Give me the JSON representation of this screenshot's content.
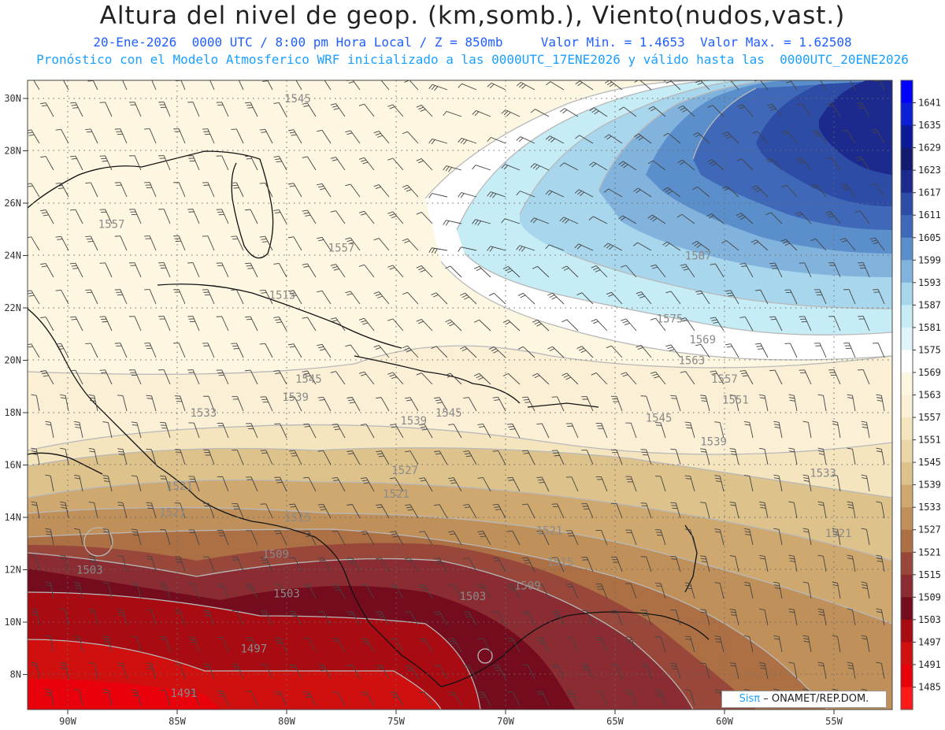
{
  "header": {
    "title": "Altura del nivel de geop. (km,somb.), Viento(nudos,vast.)",
    "date": "20-Ene-2026",
    "time": "0000 UTC / 8:00 pm Hora Local / Z = 850mb",
    "min_value": "Valor Min. = 1.4653",
    "max_value": "Valor Max. = 1.62508",
    "forecast_note": "Pronóstico con el Modelo Atmosferico WRF inicializado a las 0000UTC_17ENE2026 y válido hasta las  0000UTC_20ENE2026"
  },
  "map": {
    "lat_labels": [
      "30N",
      "28N",
      "26N",
      "24N",
      "22N",
      "20N",
      "18N",
      "16N",
      "14N",
      "12N",
      "10N",
      "8N"
    ],
    "lon_labels": [
      "90W",
      "85W",
      "80W",
      "75W",
      "70W",
      "65W",
      "60W",
      "55W"
    ],
    "contour_labels": [
      {
        "text": "1545",
        "lon": -79.5,
        "lat": 30.0
      },
      {
        "text": "1557",
        "lon": -88.0,
        "lat": 25.2
      },
      {
        "text": "1557",
        "lon": -77.5,
        "lat": 24.3
      },
      {
        "text": "1515",
        "lon": -80.2,
        "lat": 22.5
      },
      {
        "text": "1587",
        "lon": -61.2,
        "lat": 24.0
      },
      {
        "text": "1575",
        "lon": -62.5,
        "lat": 21.6
      },
      {
        "text": "1569",
        "lon": -61.0,
        "lat": 20.8
      },
      {
        "text": "1563",
        "lon": -61.5,
        "lat": 20.0
      },
      {
        "text": "1557",
        "lon": -60.0,
        "lat": 19.3
      },
      {
        "text": "1551",
        "lon": -59.5,
        "lat": 18.5
      },
      {
        "text": "1545",
        "lon": -79.0,
        "lat": 19.3
      },
      {
        "text": "1539",
        "lon": -79.6,
        "lat": 18.6
      },
      {
        "text": "1539",
        "lon": -74.2,
        "lat": 17.7
      },
      {
        "text": "1545",
        "lon": -72.6,
        "lat": 18.0
      },
      {
        "text": "1545",
        "lon": -63.0,
        "lat": 17.8
      },
      {
        "text": "1539",
        "lon": -60.5,
        "lat": 16.9
      },
      {
        "text": "1533",
        "lon": -83.8,
        "lat": 18.0
      },
      {
        "text": "1533",
        "lon": -55.5,
        "lat": 15.7
      },
      {
        "text": "1527",
        "lon": -74.6,
        "lat": 15.8
      },
      {
        "text": "1521",
        "lon": -84.9,
        "lat": 15.2
      },
      {
        "text": "1521",
        "lon": -85.2,
        "lat": 14.2
      },
      {
        "text": "1521",
        "lon": -75.0,
        "lat": 14.9
      },
      {
        "text": "1521",
        "lon": -68.0,
        "lat": 13.5
      },
      {
        "text": "1521",
        "lon": -54.8,
        "lat": 13.4
      },
      {
        "text": "1515",
        "lon": -79.5,
        "lat": 14.0
      },
      {
        "text": "1515",
        "lon": -67.5,
        "lat": 12.3
      },
      {
        "text": "1509",
        "lon": -80.5,
        "lat": 12.6
      },
      {
        "text": "1509",
        "lon": -69.0,
        "lat": 11.4
      },
      {
        "text": "1503",
        "lon": -89.0,
        "lat": 12.0
      },
      {
        "text": "1503",
        "lon": -80.0,
        "lat": 11.1
      },
      {
        "text": "1503",
        "lon": -71.5,
        "lat": 11.0
      },
      {
        "text": "1497",
        "lon": -81.5,
        "lat": 9.0
      },
      {
        "text": "1491",
        "lon": -84.7,
        "lat": 7.3
      }
    ]
  },
  "colorbar": {
    "levels": [
      "1641",
      "1635",
      "1629",
      "1623",
      "1617",
      "1611",
      "1605",
      "1599",
      "1593",
      "1587",
      "1581",
      "1575",
      "1569",
      "1563",
      "1557",
      "1551",
      "1545",
      "1539",
      "1533",
      "1527",
      "1521",
      "1515",
      "1509",
      "1503",
      "1497",
      "1491",
      "1485"
    ],
    "colors": [
      "#0000ff",
      "#0b1fd6",
      "#0c1a9a",
      "#121b70",
      "#1c2a8e",
      "#2d4ca6",
      "#3f69b8",
      "#5a8fcb",
      "#82b3dc",
      "#a8d6ec",
      "#c6ecf6",
      "#dff5fa",
      "#ffffff",
      "#fdf6e0",
      "#fbf0d6",
      "#f5e5bf",
      "#ead6a7",
      "#ddc28b",
      "#cfa870",
      "#c0905a",
      "#ad7044",
      "#98473a",
      "#8a2c32",
      "#750c1e",
      "#a80c12",
      "#d0100f",
      "#e8000b",
      "#ff1a1a"
    ]
  },
  "credit": {
    "brand": "Sisπ",
    "owner": "– ONAMET/REP.DOM."
  }
}
